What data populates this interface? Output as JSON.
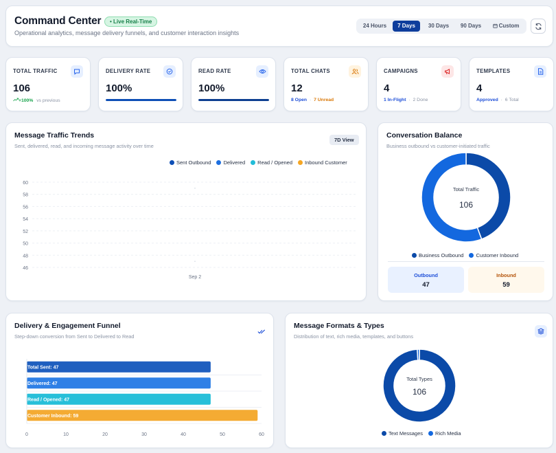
{
  "header": {
    "title": "Command Center",
    "live_badge": "• Live Real-Time",
    "subtitle": "Operational analytics, message delivery funnels, and customer interaction insights",
    "ranges": [
      "24 Hours",
      "7 Days",
      "30 Days",
      "90 Days",
      "Custom"
    ],
    "active_range": "7 Days"
  },
  "stats": {
    "total_traffic": {
      "label": "TOTAL TRAFFIC",
      "value": "106",
      "change": "+100%",
      "change_note": "vs previous",
      "icon": "chat-icon",
      "color": "#2563eb"
    },
    "delivery_rate": {
      "label": "DELIVERY RATE",
      "value": "100%",
      "progress": 1.0,
      "icon": "check-circle-icon",
      "color": "#2563eb"
    },
    "read_rate": {
      "label": "READ RATE",
      "value": "100%",
      "progress": 1.0,
      "icon": "eye-icon",
      "color": "#2563eb"
    },
    "total_chats": {
      "label": "TOTAL CHATS",
      "value": "12",
      "open": "8 Open",
      "unread": "7 Unread",
      "icon": "users-icon",
      "color": "#d97706"
    },
    "campaigns": {
      "label": "CAMPAIGNS",
      "value": "4",
      "in_flight": "1 In-Flight",
      "done": "2 Done",
      "icon": "megaphone-icon",
      "color": "#dc2626"
    },
    "templates": {
      "label": "TEMPLATES",
      "value": "4",
      "approved": "Approved",
      "total": "6 Total",
      "icon": "file-icon",
      "color": "#2563eb"
    }
  },
  "traffic": {
    "title": "Message Traffic Trends",
    "subtitle": "Sent, delivered, read, and incoming message activity over time",
    "view_badge": "7D View",
    "legend": [
      "Sent Outbound",
      "Delivered",
      "Read / Opened",
      "Inbound Customer"
    ]
  },
  "balance": {
    "title": "Conversation Balance",
    "subtitle": "Business outbound vs customer-initiated traffic",
    "center_label": "Total Traffic",
    "center_value": "106",
    "legend": [
      "Business Outbound",
      "Customer Inbound"
    ],
    "outbound_label": "Outbound",
    "outbound_value": "47",
    "inbound_label": "Inbound",
    "inbound_value": "59"
  },
  "funnel": {
    "title": "Delivery & Engagement Funnel",
    "subtitle": "Step-down conversion from Sent to Delivered to Read"
  },
  "formats": {
    "title": "Message Formats & Types",
    "subtitle": "Distribution of text, rich media, templates, and buttons",
    "center_label": "Total Types",
    "center_value": "106",
    "legend": [
      "Text Messages",
      "Rich Media"
    ]
  },
  "chart_data": [
    {
      "type": "line",
      "title": "Message Traffic Trends",
      "x": [
        "Sep 2"
      ],
      "ylim": [
        46,
        60
      ],
      "yticks": [
        60,
        58,
        56,
        54,
        52,
        50,
        48,
        46
      ],
      "series": [
        {
          "name": "Sent Outbound",
          "color": "#0e4fb6",
          "values": [
            null
          ]
        },
        {
          "name": "Delivered",
          "color": "#1d6fe0",
          "values": [
            null
          ]
        },
        {
          "name": "Read / Opened",
          "color": "#22bcd8",
          "values": [
            null
          ]
        },
        {
          "name": "Inbound Customer",
          "color": "#f5a623",
          "values": [
            null
          ]
        }
      ],
      "grid": true,
      "legend_position": "top-right"
    },
    {
      "type": "pie",
      "title": "Conversation Balance",
      "categories": [
        "Business Outbound",
        "Customer Inbound"
      ],
      "values": [
        47,
        59
      ],
      "colors": [
        "#0b4aa8",
        "#1368df"
      ],
      "legend_position": "bottom"
    },
    {
      "type": "bar",
      "title": "Delivery & Engagement Funnel",
      "orientation": "horizontal",
      "categories": [
        "Total Sent",
        "Delivered",
        "Read / Opened",
        "Customer Inbound"
      ],
      "values": [
        47,
        47,
        47,
        59
      ],
      "colors": [
        "#1f5fbf",
        "#2f80e6",
        "#27bfd9",
        "#f4ab33"
      ],
      "xlim": [
        0,
        60
      ],
      "xticks": [
        0,
        10,
        20,
        30,
        40,
        50,
        60
      ]
    },
    {
      "type": "pie",
      "title": "Message Formats & Types",
      "categories": [
        "Text Messages",
        "Rich Media"
      ],
      "values": [
        105,
        1
      ],
      "colors": [
        "#0b4aa8",
        "#1368df"
      ],
      "legend_position": "bottom"
    }
  ]
}
